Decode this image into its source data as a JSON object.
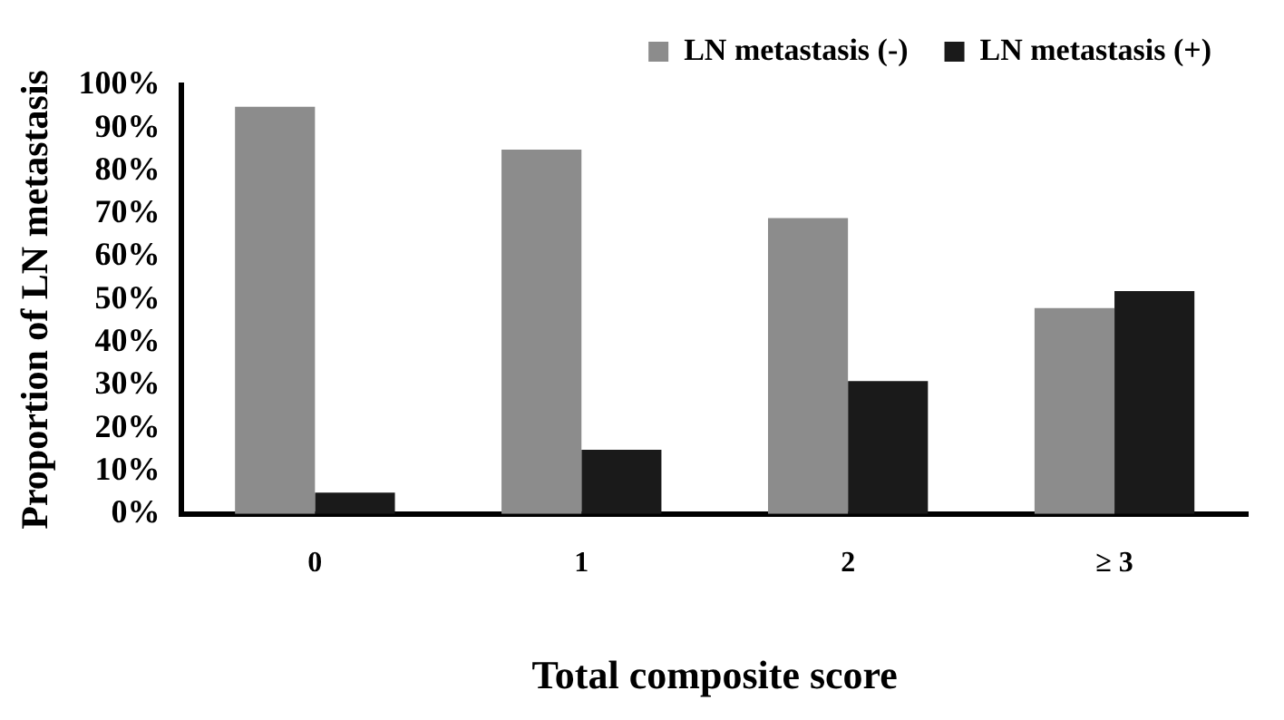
{
  "chart_data": {
    "type": "bar",
    "xlabel": "Total composite score",
    "ylabel": "Proportion of LN metastasis",
    "categories": [
      "0",
      "1",
      "2",
      "≥ 3"
    ],
    "series": [
      {
        "name": "LN metastasis (-)",
        "color": "#8c8c8c",
        "values": [
          95,
          85,
          69,
          48
        ]
      },
      {
        "name": "LN metastasis (+)",
        "color": "#1a1a1a",
        "values": [
          5,
          15,
          31,
          52
        ]
      }
    ],
    "ylim": [
      0,
      100
    ],
    "yticks": [
      {
        "value": 0,
        "label": "0%"
      },
      {
        "value": 10,
        "label": "10%"
      },
      {
        "value": 20,
        "label": "20%"
      },
      {
        "value": 30,
        "label": "30%"
      },
      {
        "value": 40,
        "label": "40%"
      },
      {
        "value": 50,
        "label": "50%"
      },
      {
        "value": 60,
        "label": "60%"
      },
      {
        "value": 70,
        "label": "70%"
      },
      {
        "value": 80,
        "label": "80%"
      },
      {
        "value": 90,
        "label": "90%"
      },
      {
        "value": 100,
        "label": "100%"
      }
    ],
    "grid": false,
    "legend": "top right"
  }
}
